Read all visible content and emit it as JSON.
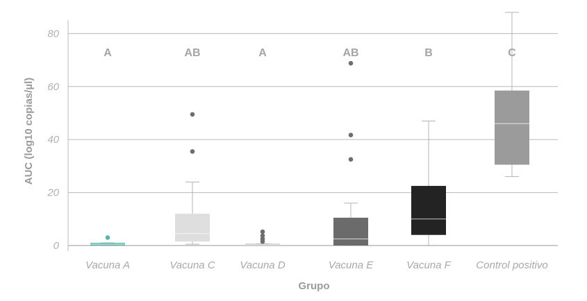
{
  "chart_data": {
    "type": "box",
    "xlabel": "Grupo",
    "ylabel": "AUC (log10 copias/µl)",
    "ylim": [
      0,
      85
    ],
    "yticks": [
      0,
      20,
      40,
      60,
      80
    ],
    "grid": "horizontal",
    "legend": "none",
    "categories": [
      "Vacuna A",
      "Vacuna C",
      "Vacuna D",
      "Vacuna E",
      "Vacuna F",
      "Control positivo"
    ],
    "series": [
      {
        "category": "Vacuna A",
        "letter": "A",
        "whisker_low": 0,
        "q1": 0,
        "median": 0.5,
        "q3": 1,
        "whisker_high": 1,
        "outliers": [
          3
        ],
        "color": "#5bb5a9"
      },
      {
        "category": "Vacuna C",
        "letter": "AB",
        "whisker_low": 0.5,
        "q1": 1.5,
        "median": 4.5,
        "q3": 12,
        "whisker_high": 24,
        "outliers": [
          35.5,
          49.5
        ],
        "color": "#dedede"
      },
      {
        "category": "Vacuna D",
        "letter": "A",
        "whisker_low": 0,
        "q1": 0,
        "median": 0.3,
        "q3": 0.7,
        "whisker_high": 0.7,
        "outliers": [
          1.5,
          2.5,
          3.7,
          5.2
        ],
        "color": "#c2c2c2"
      },
      {
        "category": "Vacuna E",
        "letter": "AB",
        "whisker_low": 0,
        "q1": 0,
        "median": 2.5,
        "q3": 10.5,
        "whisker_high": 16,
        "outliers": [
          32.5,
          41.7,
          68.8
        ],
        "color": "#6b6b6b"
      },
      {
        "category": "Vacuna F",
        "letter": "B",
        "whisker_low": 0,
        "q1": 4,
        "median": 10,
        "q3": 22.5,
        "whisker_high": 47,
        "outliers": [],
        "color": "#232323"
      },
      {
        "category": "Control positivo",
        "letter": "C",
        "whisker_low": 26,
        "q1": 30.5,
        "median": 46,
        "q3": 58.5,
        "whisker_high": 88,
        "outliers": [],
        "color": "#9b9b9b"
      }
    ],
    "colors": {
      "grid": "#b8b8b8",
      "whisker": "#b3b3b3",
      "outlier": "#6d6d6d",
      "text": "#a8a8a8"
    }
  }
}
